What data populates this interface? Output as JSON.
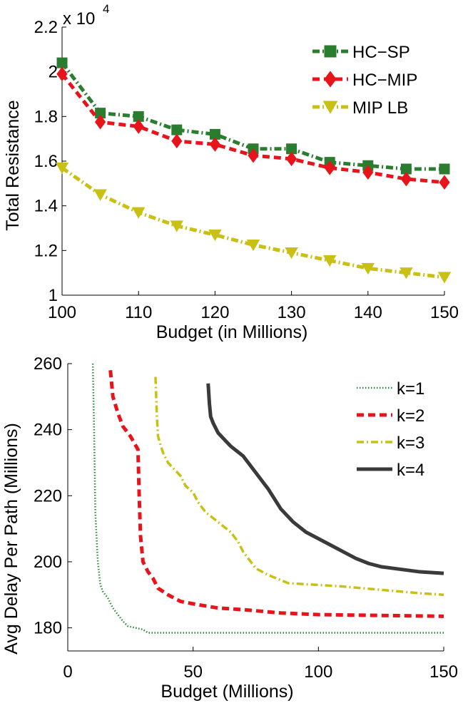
{
  "chart_data": [
    {
      "type": "line",
      "title": "",
      "xlabel": "Budget (in Millions)",
      "ylabel": "Total Resistance",
      "y_exponent_label": "x 10",
      "y_exponent_power": "4",
      "xlim": [
        100,
        150
      ],
      "ylim": [
        1.0,
        2.2
      ],
      "xticks": [
        100,
        110,
        120,
        130,
        140,
        150
      ],
      "yticks": [
        1,
        1.2,
        1.4,
        1.6,
        1.8,
        2,
        2.2
      ],
      "ytick_labels": [
        "1",
        "1.2",
        "1.4",
        "1.6",
        "1.8",
        "2",
        "2.2"
      ],
      "x": [
        100,
        105,
        110,
        115,
        120,
        125,
        130,
        135,
        140,
        145,
        150
      ],
      "legend_position": "top-right",
      "series": [
        {
          "name": "HC−SP",
          "color": "#2a7d2e",
          "marker": "square",
          "dash": "dashdot",
          "values": [
            2.04,
            1.815,
            1.8,
            1.74,
            1.72,
            1.655,
            1.655,
            1.595,
            1.58,
            1.565,
            1.565
          ]
        },
        {
          "name": "HC−MIP",
          "color": "#e8141c",
          "marker": "diamond",
          "dash": "dash",
          "values": [
            1.99,
            1.775,
            1.755,
            1.69,
            1.675,
            1.625,
            1.61,
            1.57,
            1.55,
            1.52,
            1.505
          ]
        },
        {
          "name": "MIP LB",
          "color": "#c8c014",
          "marker": "triangle-down",
          "dash": "dashdot",
          "values": [
            1.57,
            1.45,
            1.37,
            1.31,
            1.27,
            1.225,
            1.19,
            1.155,
            1.12,
            1.1,
            1.08
          ]
        }
      ]
    },
    {
      "type": "line",
      "title": "",
      "xlabel": "Budget (Millions)",
      "ylabel": "Avg Delay Per Path (Millions)",
      "xlim": [
        0,
        150
      ],
      "ylim": [
        173,
        260
      ],
      "xticks": [
        0,
        50,
        100,
        150
      ],
      "yticks": [
        180,
        200,
        220,
        240,
        260
      ],
      "legend_position": "top-right",
      "series": [
        {
          "name": "k=1",
          "color": "#2a8a3a",
          "dash": "dotted",
          "width": 2.5,
          "points": [
            [
              10,
              260
            ],
            [
              10.5,
              240
            ],
            [
              11,
              215
            ],
            [
              12,
              200
            ],
            [
              13,
              193
            ],
            [
              14,
              191
            ],
            [
              16,
              189
            ],
            [
              18,
              186
            ],
            [
              20,
              184
            ],
            [
              22,
              182
            ],
            [
              24,
              180.5
            ],
            [
              27,
              180
            ],
            [
              30,
              179.5
            ],
            [
              32,
              178.5
            ],
            [
              35,
              178.5
            ],
            [
              60,
              178.5
            ],
            [
              100,
              178.5
            ],
            [
              150,
              178.5
            ]
          ]
        },
        {
          "name": "k=2",
          "color": "#e8141c",
          "dash": "dash",
          "width": 5,
          "points": [
            [
              17,
              258
            ],
            [
              18,
              250
            ],
            [
              20,
              245
            ],
            [
              22,
              241
            ],
            [
              25,
              238
            ],
            [
              28,
              234
            ],
            [
              28.5,
              220
            ],
            [
              29,
              208
            ],
            [
              30,
              200
            ],
            [
              32,
              197
            ],
            [
              34,
              195
            ],
            [
              36,
              192
            ],
            [
              40,
              190
            ],
            [
              45,
              188
            ],
            [
              52,
              187
            ],
            [
              60,
              186
            ],
            [
              70,
              185.5
            ],
            [
              85,
              184.5
            ],
            [
              100,
              184
            ],
            [
              150,
              183.5
            ]
          ]
        },
        {
          "name": "k=3",
          "color": "#c8c014",
          "dash": "dashdot",
          "width": 3.5,
          "points": [
            [
              35,
              256
            ],
            [
              35.5,
              245
            ],
            [
              36,
              238
            ],
            [
              38,
              233
            ],
            [
              40,
              230
            ],
            [
              45,
              226
            ],
            [
              47,
              223
            ],
            [
              50,
              221
            ],
            [
              52,
              218
            ],
            [
              55,
              215
            ],
            [
              60,
              212
            ],
            [
              65,
              209
            ],
            [
              68,
              206
            ],
            [
              70,
              203
            ],
            [
              75,
              198
            ],
            [
              80,
              196
            ],
            [
              88,
              193.5
            ],
            [
              100,
              193
            ],
            [
              110,
              192.5
            ],
            [
              125,
              191.5
            ],
            [
              140,
              190.5
            ],
            [
              150,
              190
            ]
          ]
        },
        {
          "name": "k=4",
          "color": "#3a3a3a",
          "dash": "solid",
          "width": 5,
          "points": [
            [
              56,
              254
            ],
            [
              56.5,
              248
            ],
            [
              57,
              244
            ],
            [
              58,
              242
            ],
            [
              60,
              239
            ],
            [
              65,
              235
            ],
            [
              70,
              232
            ],
            [
              75,
              227
            ],
            [
              80,
              222
            ],
            [
              85,
              216
            ],
            [
              90,
              212
            ],
            [
              95,
              209
            ],
            [
              100,
              207
            ],
            [
              105,
              205
            ],
            [
              110,
              203
            ],
            [
              115,
              201
            ],
            [
              120,
              199.5
            ],
            [
              125,
              198.5
            ],
            [
              130,
              198
            ],
            [
              140,
              197
            ],
            [
              150,
              196.5
            ]
          ]
        }
      ]
    }
  ]
}
